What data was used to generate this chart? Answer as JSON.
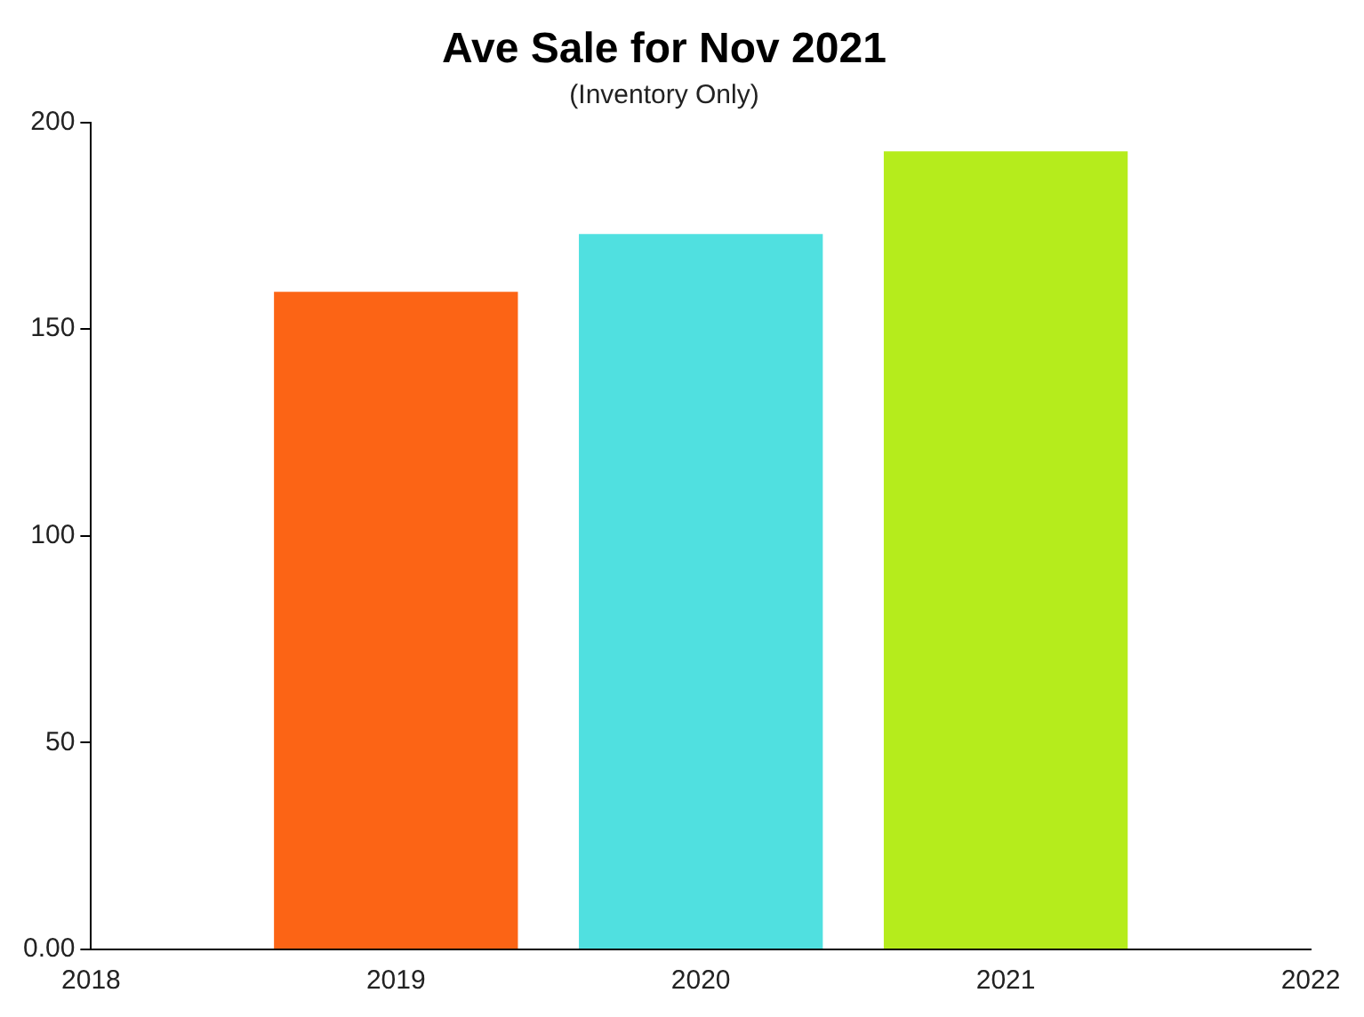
{
  "chart_data": {
    "type": "bar",
    "title": "Ave Sale for Nov 2021",
    "subtitle": "(Inventory Only)",
    "x": [
      2019,
      2020,
      2021
    ],
    "values": [
      159,
      173,
      193
    ],
    "colors": [
      "#fc6415",
      "#50e0e0",
      "#b5ec1c"
    ],
    "xlim": [
      2018,
      2022
    ],
    "xticks": [
      2018,
      2019,
      2020,
      2021,
      2022
    ],
    "ylim": [
      0,
      200
    ],
    "yticks": [
      {
        "value": 0,
        "label": "0.00"
      },
      50,
      100,
      150,
      200
    ],
    "grid": false,
    "legend": false
  }
}
